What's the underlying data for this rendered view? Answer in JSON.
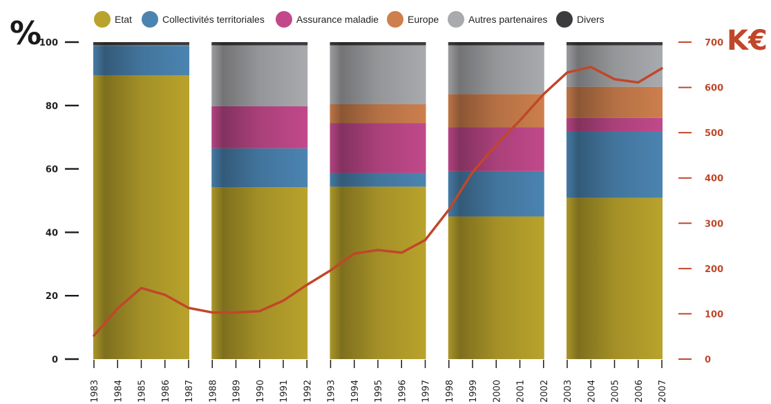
{
  "chart_data": {
    "type": "bar",
    "stacked": true,
    "left_axis_unit": "%",
    "right_axis_unit": "K€",
    "left_ylim": [
      0,
      100
    ],
    "left_ticks": [
      "0",
      "20",
      "40",
      "60",
      "80",
      "100"
    ],
    "right_ylim": [
      0,
      700
    ],
    "right_ticks": [
      "0",
      "100",
      "200",
      "300",
      "400",
      "500",
      "600",
      "700"
    ],
    "grid": false,
    "legend_position": "top",
    "x": [
      "1983",
      "1984",
      "1985",
      "1986",
      "1987",
      "1988",
      "1989",
      "1990",
      "1991",
      "1992",
      "1993",
      "1994",
      "1995",
      "1996",
      "1997",
      "1998",
      "1999",
      "2000",
      "2001",
      "2002",
      "2003",
      "2004",
      "2005",
      "2006",
      "2007"
    ],
    "bar_groups": [
      {
        "start": "1983",
        "end": "1987",
        "values": {
          "Etat": 89.5,
          "Collectivités territoriales": 9.3,
          "Assurance maladie": 0,
          "Europe": 0,
          "Autres partenaires": 0.2,
          "Divers": 1.0
        }
      },
      {
        "start": "1988",
        "end": "1992",
        "values": {
          "Etat": 54.2,
          "Collectivités territoriales": 12.3,
          "Assurance maladie": 13.3,
          "Europe": 0,
          "Autres partenaires": 19.2,
          "Divers": 1.0
        }
      },
      {
        "start": "1993",
        "end": "1997",
        "values": {
          "Etat": 54.4,
          "Collectivités territoriales": 4.3,
          "Assurance maladie": 15.7,
          "Europe": 6.0,
          "Autres partenaires": 18.6,
          "Divers": 1.0
        }
      },
      {
        "start": "1998",
        "end": "2002",
        "values": {
          "Etat": 45.0,
          "Collectivités territoriales": 14.3,
          "Assurance maladie": 13.8,
          "Europe": 10.5,
          "Autres partenaires": 15.4,
          "Divers": 1.0
        }
      },
      {
        "start": "2003",
        "end": "2007",
        "values": {
          "Etat": 50.9,
          "Collectivités territoriales": 21.0,
          "Assurance maladie": 4.2,
          "Europe": 9.8,
          "Autres partenaires": 13.1,
          "Divers": 1.0
        }
      }
    ],
    "series": [
      {
        "name": "Etat",
        "color": "#b9a32c"
      },
      {
        "name": "Collectivités territoriales",
        "color": "#4b84b1"
      },
      {
        "name": "Assurance maladie",
        "color": "#c1498b"
      },
      {
        "name": "Europe",
        "color": "#cd7f4d"
      },
      {
        "name": "Autres partenaires",
        "color": "#a9aaad"
      },
      {
        "name": "Divers",
        "color": "#3c3c3e"
      }
    ],
    "line": {
      "axis": "right",
      "color": "#c0472a",
      "values": [
        52,
        112,
        157,
        142,
        113,
        103,
        103,
        106,
        129,
        164,
        196,
        233,
        241,
        235,
        263,
        330,
        413,
        473,
        527,
        585,
        633,
        645,
        618,
        611,
        642
      ]
    }
  }
}
